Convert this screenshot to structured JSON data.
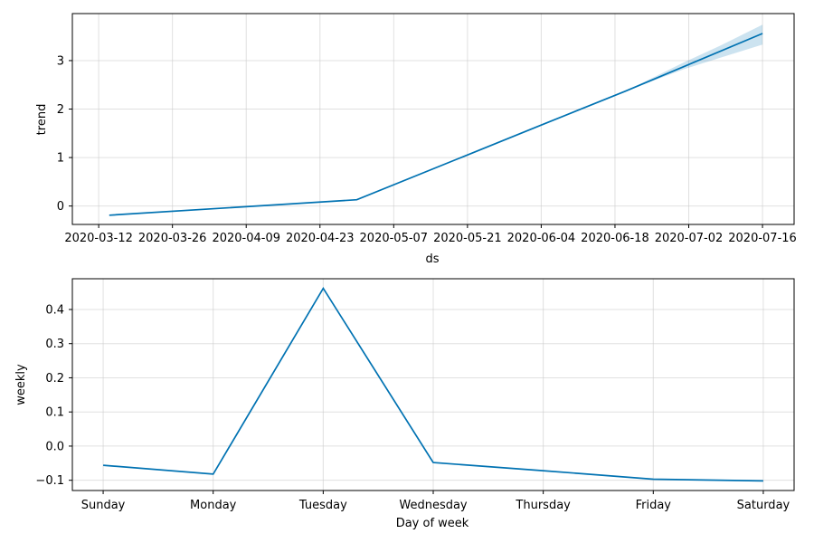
{
  "chart_data": [
    {
      "type": "line",
      "xlabel": "ds",
      "ylabel": "trend",
      "x_tick_labels": [
        "2020-03-12",
        "2020-03-26",
        "2020-04-09",
        "2020-04-23",
        "2020-05-07",
        "2020-05-21",
        "2020-06-04",
        "2020-06-18",
        "2020-07-02",
        "2020-07-16"
      ],
      "x_range": [
        "2020-03-07",
        "2020-07-22"
      ],
      "y_ticks": [
        0,
        1,
        2,
        3
      ],
      "ylim": [
        -0.38,
        3.97
      ],
      "grid": true,
      "line_color": "#0072B2",
      "band_color": "#0072B2",
      "series": [
        {
          "x": [
            "2020-03-14",
            "2020-04-30",
            "2020-06-04",
            "2020-06-20",
            "2020-07-16"
          ],
          "values": [
            -0.19,
            0.13,
            1.67,
            2.37,
            3.56
          ]
        }
      ],
      "uncertainty": {
        "x": [
          "2020-06-20",
          "2020-07-01",
          "2020-07-08",
          "2020-07-16"
        ],
        "lower": [
          2.37,
          2.82,
          3.06,
          3.33
        ],
        "upper": [
          2.37,
          2.96,
          3.31,
          3.74
        ]
      }
    },
    {
      "type": "line",
      "xlabel": "Day of week",
      "ylabel": "weekly",
      "categories": [
        "Sunday",
        "Monday",
        "Tuesday",
        "Wednesday",
        "Thursday",
        "Friday",
        "Saturday"
      ],
      "y_ticks": [
        -0.1,
        0.0,
        0.1,
        0.2,
        0.3,
        0.4
      ],
      "y_tick_labels": [
        "−0.1",
        "0.0",
        "0.1",
        "0.2",
        "0.3",
        "0.4"
      ],
      "ylim": [
        -0.13,
        0.49
      ],
      "grid": true,
      "line_color": "#0072B2",
      "series": [
        {
          "values": [
            -0.056,
            -0.082,
            0.462,
            -0.048,
            -0.072,
            -0.097,
            -0.102
          ]
        }
      ]
    }
  ]
}
